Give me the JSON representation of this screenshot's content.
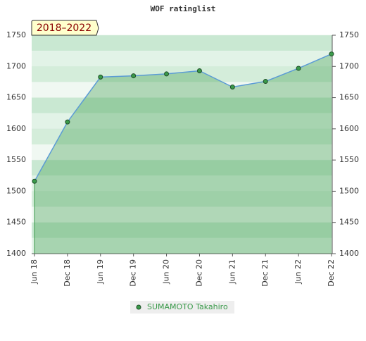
{
  "chart_data": {
    "type": "line",
    "title": "WOF ratinglist",
    "annotation": "2018–2022",
    "categories": [
      "Jun 18",
      "Dec 18",
      "Jun 19",
      "Dec 19",
      "Jun 20",
      "Dec 20",
      "Jun 21",
      "Dec 21",
      "Jun 22",
      "Dec 22"
    ],
    "series": [
      {
        "name": "SUMAMOTO Takahiro",
        "color": "#3a9a4a",
        "values": [
          1516,
          1611,
          1683,
          1685,
          1688,
          1693,
          1667,
          1676,
          1697,
          1720
        ]
      }
    ],
    "ylim": [
      1400,
      1750
    ],
    "yticks": [
      1400,
      1450,
      1500,
      1550,
      1600,
      1650,
      1700,
      1750
    ],
    "grid": true
  }
}
